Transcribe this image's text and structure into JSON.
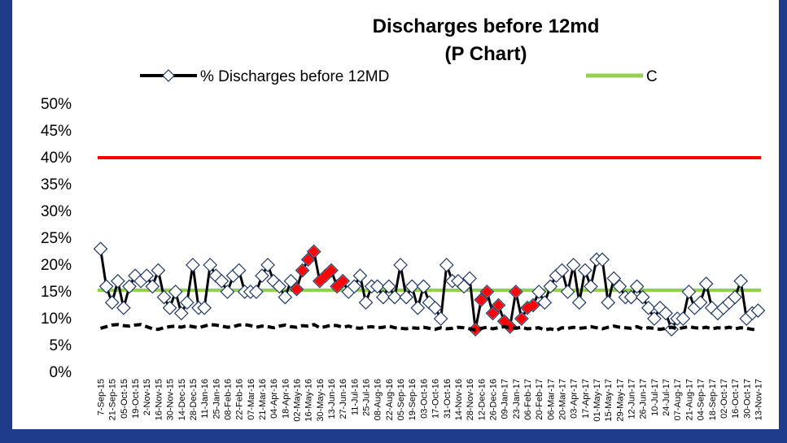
{
  "chart_data": {
    "type": "line",
    "title": [
      "Discharges before 12md",
      "(P Chart)"
    ],
    "categories": [
      "7-Sep-15",
      null,
      "21-Sep-15",
      null,
      "05-Oct-15",
      null,
      "19-Oct-15",
      null,
      "2-Nov-15",
      null,
      "16-Nov-15",
      null,
      "30-Nov-15",
      null,
      "14-Dec-15",
      null,
      "28-Dec-15",
      null,
      "11-Jan-16",
      null,
      "25-Jan-16",
      null,
      "08-Feb-16",
      null,
      "22-Feb-16",
      null,
      "07-Mar-16",
      null,
      "21-Mar-16",
      null,
      "04-Apr-16",
      null,
      "18-Apr-16",
      null,
      "02-May-16",
      null,
      "16-May-16",
      null,
      "30-May-16",
      null,
      "13-Jun-16",
      null,
      "27-Jun-16",
      null,
      "11-Jul-16",
      null,
      "25-Jul-16",
      null,
      "08-Aug-16",
      null,
      "22-Aug-16",
      null,
      "05-Sep-16",
      null,
      "19-Sep-16",
      null,
      "03-Oct-16",
      null,
      "17-Oct-16",
      null,
      "31-Oct-16",
      null,
      "14-Nov-16",
      null,
      "28-Nov-16",
      null,
      "12-Dec-16",
      null,
      "26-Dec-16",
      null,
      "09-Jan-17",
      null,
      "23-Jan-17",
      null,
      "06-Feb-17",
      null,
      "20-Feb-17",
      null,
      "06-Mar-17",
      null,
      "20-Mar-17",
      null,
      "03-Apr-17",
      null,
      "17-Apr-17",
      null,
      "01-May-17",
      null,
      "15-May-17",
      null,
      "29-May-17",
      null,
      "12-Jun-17",
      null,
      "26-Jun-17",
      null,
      "10-Jul-17",
      null,
      "24-Jul-17",
      null,
      "07-Aug-17",
      null,
      "21-Aug-17",
      null,
      "04-Sep-17",
      null,
      "18-Sep-17",
      null,
      "02-Oct-17",
      null,
      "16-Oct-17",
      null,
      "30-Oct-17",
      null,
      "13-Nov-17"
    ],
    "series": [
      {
        "name": "% Discharges before 12MD",
        "color": "#000000",
        "marker": "diamond",
        "values": [
          23,
          16,
          13,
          17,
          12,
          16,
          18,
          17,
          18,
          16,
          19,
          14,
          12,
          15,
          11,
          13,
          20,
          12,
          12,
          20,
          18,
          17,
          15,
          18,
          19,
          15,
          15,
          15,
          18,
          20,
          17,
          16,
          14,
          17,
          15.5,
          19,
          21,
          22.5,
          17,
          18,
          19,
          16,
          17,
          15,
          16,
          18,
          13,
          16,
          16,
          14,
          16,
          14,
          20,
          14,
          16,
          12,
          16,
          13,
          12,
          10,
          20,
          17,
          17,
          16,
          17.5,
          8,
          13.5,
          15,
          11,
          12.5,
          9.5,
          8.5,
          15,
          10,
          12,
          12.5,
          15,
          13,
          16,
          18,
          19,
          15,
          20,
          13,
          19,
          16,
          21,
          21,
          13,
          17.5,
          16,
          14,
          14,
          16,
          14,
          12,
          10,
          12,
          11,
          8,
          10,
          10,
          15,
          12,
          13,
          16.5,
          12,
          11,
          12,
          13,
          14,
          17,
          10,
          11,
          11.5
        ]
      },
      {
        "color": "#ff0000",
        "marker": "filled-diamond",
        "values": [
          null,
          null,
          null,
          null,
          null,
          null,
          null,
          null,
          null,
          null,
          null,
          null,
          null,
          null,
          null,
          null,
          null,
          null,
          null,
          null,
          null,
          null,
          null,
          null,
          null,
          null,
          null,
          null,
          null,
          null,
          null,
          null,
          null,
          null,
          15.5,
          19,
          21,
          22.5,
          17,
          18,
          19,
          16,
          17,
          null,
          null,
          null,
          null,
          null,
          null,
          null,
          null,
          null,
          null,
          null,
          null,
          null,
          null,
          null,
          null,
          null,
          null,
          null,
          null,
          null,
          null,
          8,
          13.5,
          15,
          11,
          12.5,
          9.5,
          8.5,
          15,
          10,
          12,
          12.5,
          null,
          null,
          null,
          null,
          null,
          null,
          null,
          null,
          null,
          null,
          null,
          null,
          null,
          null,
          null,
          null,
          null,
          null,
          null,
          null,
          null,
          null,
          null,
          null,
          null,
          null,
          null,
          null,
          null,
          null,
          null,
          null,
          null,
          null,
          null,
          null,
          null,
          null,
          null
        ]
      },
      {
        "color": "#000000",
        "dashed": true,
        "values": [
          8.2,
          8.5,
          8.8,
          8.9,
          8.7,
          8.6,
          8.8,
          8.9,
          8.5,
          8.1,
          8.0,
          8.3,
          8.5,
          8.6,
          8.4,
          8.7,
          8.5,
          8.3,
          8.6,
          8.9,
          8.8,
          8.6,
          8.4,
          8.5,
          8.8,
          8.9,
          8.7,
          8.4,
          8.6,
          8.5,
          8.3,
          8.6,
          8.8,
          8.5,
          8.4,
          8.7,
          8.6,
          8.9,
          8.3,
          8.5,
          8.8,
          8.7,
          8.4,
          8.6,
          8.3,
          8.2,
          8.4,
          8.5,
          8.3,
          8.4,
          8.6,
          8.3,
          8.2,
          8.1,
          8.3,
          8.2,
          8.4,
          8.2,
          8.0,
          8.3,
          8.1,
          8.2,
          8.4,
          8.3,
          8.1,
          7.9,
          8.2,
          8.4,
          8.1,
          8.3,
          8.5,
          8.3,
          8.2,
          8.4,
          8.1,
          8.2,
          8.3,
          7.9,
          8.1,
          7.8,
          8.3,
          8.2,
          8.4,
          8.2,
          8.3,
          8.5,
          8.3,
          8.1,
          8.4,
          8.6,
          8.4,
          8.3,
          8.2,
          8.5,
          8.1,
          8.3,
          8.2,
          8.0,
          8.2,
          8.4,
          8.1,
          8.3,
          8.5,
          8.3,
          8.2,
          8.4,
          8.1,
          8.3,
          8.2,
          8.4,
          8.1,
          8.3,
          8.2,
          8.0,
          7.9
        ]
      }
    ],
    "reference_lines": [
      {
        "name": "C",
        "color": "#92d050",
        "value": 15.3
      },
      {
        "color": "#ff0000",
        "value": 40
      }
    ],
    "ylim": [
      0,
      50
    ],
    "yticks": [
      {
        "value": 0,
        "label": "0%"
      },
      {
        "value": 5,
        "label": "5%"
      },
      {
        "value": 10,
        "label": "10%"
      },
      {
        "value": 15,
        "label": "15%"
      },
      {
        "value": 20,
        "label": "20%"
      },
      {
        "value": 25,
        "label": "25%"
      },
      {
        "value": 30,
        "label": "30%"
      },
      {
        "value": 35,
        "label": "35%"
      },
      {
        "value": 40,
        "label": "40%"
      },
      {
        "value": 45,
        "label": "45%"
      },
      {
        "value": 50,
        "label": "50%"
      }
    ],
    "grid": false
  }
}
